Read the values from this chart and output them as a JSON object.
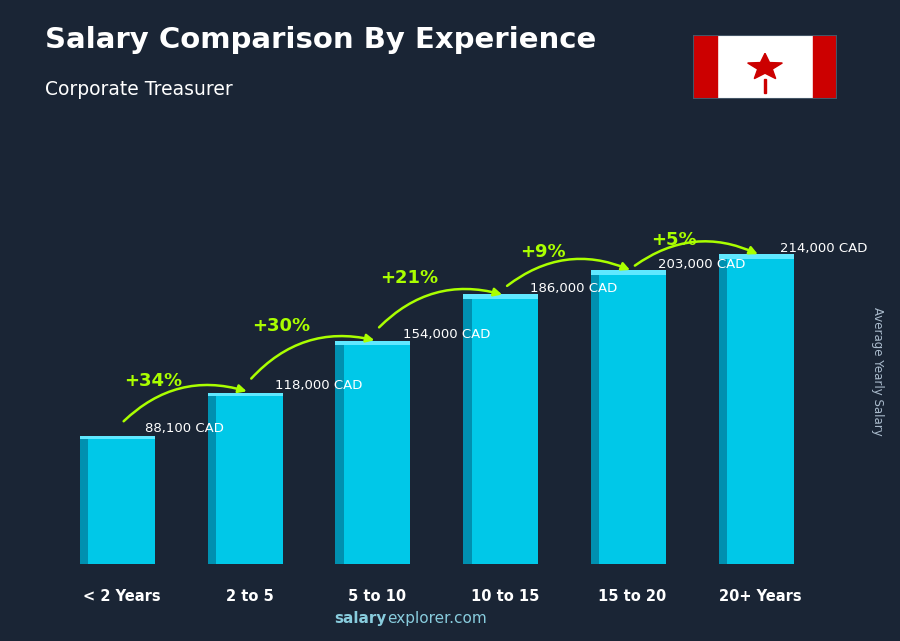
{
  "title": "Salary Comparison By Experience",
  "subtitle": "Corporate Treasurer",
  "categories": [
    "< 2 Years",
    "2 to 5",
    "5 to 10",
    "10 to 15",
    "15 to 20",
    "20+ Years"
  ],
  "values": [
    88100,
    118000,
    154000,
    186000,
    203000,
    214000
  ],
  "labels": [
    "88,100 CAD",
    "118,000 CAD",
    "154,000 CAD",
    "186,000 CAD",
    "203,000 CAD",
    "214,000 CAD"
  ],
  "pct_changes": [
    "+34%",
    "+30%",
    "+21%",
    "+9%",
    "+5%"
  ],
  "bar_color_main": "#00c8e8",
  "bar_color_left": "#0090b0",
  "bar_color_top": "#60e8ff",
  "ylabel_rotated": "Average Yearly Salary",
  "footer_bold": "salary",
  "footer_regular": "explorer.com",
  "background_color": "#1a2535",
  "title_color": "#ffffff",
  "subtitle_color": "#ffffff",
  "label_color": "#ffffff",
  "pct_color": "#aaff00",
  "footer_color": "#88ccdd",
  "ylim_max": 270000,
  "bar_width": 0.52
}
